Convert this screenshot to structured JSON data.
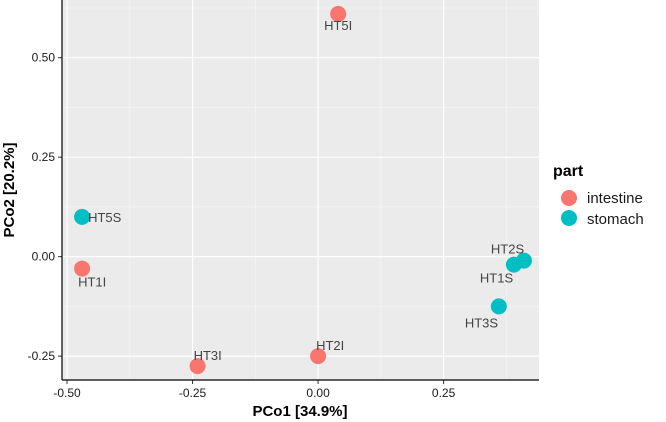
{
  "chart_data": {
    "type": "scatter",
    "xlabel": "PCo1 [34.9%]",
    "ylabel": "PCo2 [20.2%]",
    "xlim": [
      -0.51,
      0.44
    ],
    "ylim": [
      -0.31,
      0.645
    ],
    "x_ticks": [
      -0.5,
      -0.25,
      0.0,
      0.25
    ],
    "x_tick_labels": [
      "-0.50",
      "-0.25",
      "0.00",
      "0.25"
    ],
    "y_ticks": [
      -0.25,
      0.0,
      0.25,
      0.5
    ],
    "y_tick_labels": [
      "-0.25",
      "0.00",
      "0.25",
      "0.50"
    ],
    "grid": true,
    "legend": {
      "title": "part",
      "position": "right",
      "entries": [
        {
          "label": "intestine",
          "color": "#F8766D"
        },
        {
          "label": "stomach",
          "color": "#00BFC4"
        }
      ]
    },
    "points": [
      {
        "label": "HT5I",
        "part": "intestine",
        "x": 0.04,
        "y": 0.61
      },
      {
        "label": "HT5S",
        "part": "stomach",
        "x": -0.47,
        "y": 0.1
      },
      {
        "label": "HT1I",
        "part": "intestine",
        "x": -0.47,
        "y": -0.03
      },
      {
        "label": "HT3I",
        "part": "intestine",
        "x": -0.24,
        "y": -0.275
      },
      {
        "label": "HT2I",
        "part": "intestine",
        "x": 0.0,
        "y": -0.25
      },
      {
        "label": "HT2S",
        "part": "stomach",
        "x": 0.41,
        "y": -0.01
      },
      {
        "label": "HT1S",
        "part": "stomach",
        "x": 0.39,
        "y": -0.02
      },
      {
        "label": "HT3S",
        "part": "stomach",
        "x": 0.36,
        "y": -0.125
      }
    ]
  }
}
